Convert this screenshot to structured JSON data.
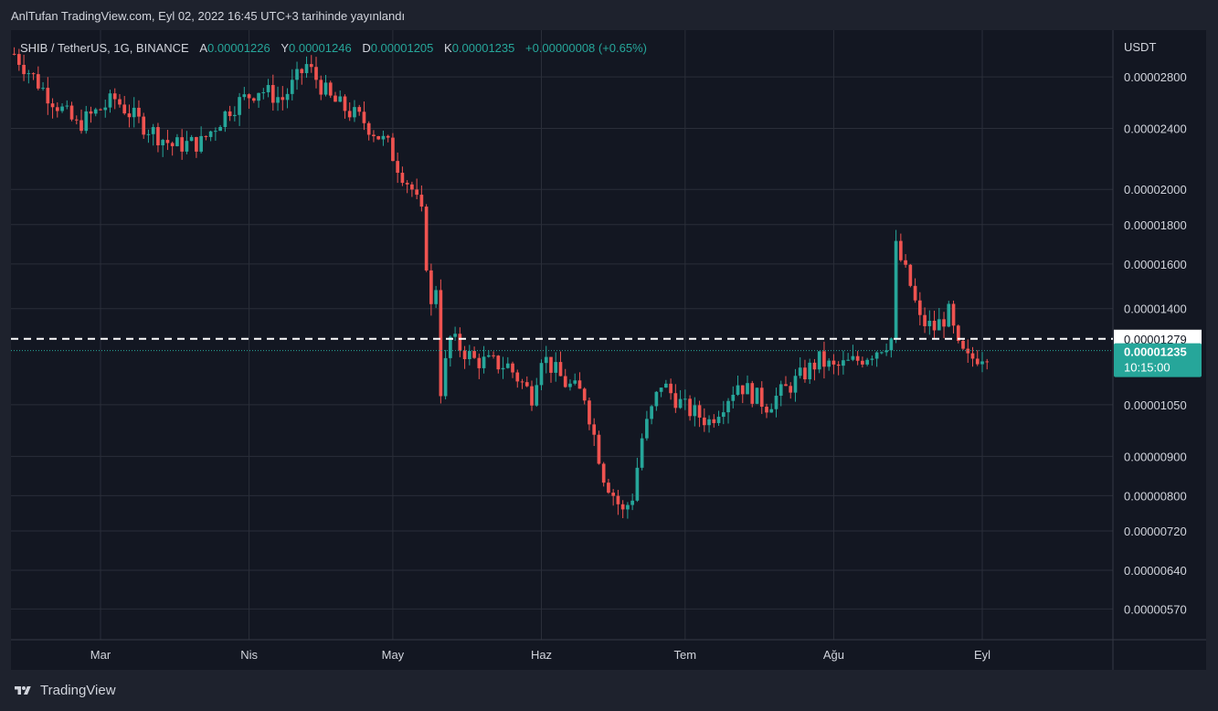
{
  "header": {
    "publish_text": "AnlTufan TradingView.com, Eyl 02, 2022 16:45 UTC+3 tarihinde yayınlandı"
  },
  "legend": {
    "symbol": "SHIB / TetherUS, 1G, BINANCE",
    "open_label": "A",
    "open": "0.00001226",
    "high_label": "Y",
    "high": "0.00001246",
    "low_label": "D",
    "low": "0.00001205",
    "close_label": "K",
    "close": "0.00001235",
    "change": "+0.00000008 (+0.65%)"
  },
  "price_scale": {
    "currency": "USDT",
    "ticks": [
      "0.00002800",
      "0.00002400",
      "0.00002000",
      "0.00001800",
      "0.00001600",
      "0.00001400",
      "0.00001050",
      "0.00000900",
      "0.00000800",
      "0.00000720",
      "0.00000640",
      "0.00000570"
    ],
    "marker_line_label": "0.00001279",
    "current_price_label": "0.00001235",
    "countdown": "10:15:00"
  },
  "footer": {
    "brand": "TradingView"
  },
  "colors": {
    "up": "#26a69a",
    "down": "#ef5350",
    "background": "#131722",
    "grid": "#2a2e39",
    "text": "#d1d4dc"
  },
  "chart_data": {
    "type": "candlestick",
    "title": "SHIB / TetherUS, 1G, BINANCE",
    "ylabel": "USDT",
    "yscale": "log",
    "ylim": [
      5.2e-06,
      3.22e-05
    ],
    "x_tick_labels": [
      {
        "label": "Mar",
        "date": "2022-03-01"
      },
      {
        "label": "Nis",
        "date": "2022-04-01"
      },
      {
        "label": "May",
        "date": "2022-05-01"
      },
      {
        "label": "Haz",
        "date": "2022-06-01"
      },
      {
        "label": "Tem",
        "date": "2022-07-01"
      },
      {
        "label": "Ağu",
        "date": "2022-08-01"
      },
      {
        "label": "Eyl",
        "date": "2022-09-01"
      }
    ],
    "horizontal_line": 1.279e-05,
    "last_close": 1.235e-05,
    "anchors": [
      {
        "date": "2022-02-11",
        "close": 3e-05
      },
      {
        "date": "2022-02-17",
        "close": 2.7e-05
      },
      {
        "date": "2022-02-24",
        "close": 2.42e-05
      },
      {
        "date": "2022-03-04",
        "close": 2.62e-05
      },
      {
        "date": "2022-03-09",
        "close": 2.45e-05
      },
      {
        "date": "2022-03-16",
        "close": 2.28e-05
      },
      {
        "date": "2022-03-22",
        "close": 2.3e-05
      },
      {
        "date": "2022-03-28",
        "close": 2.55e-05
      },
      {
        "date": "2022-04-03",
        "close": 2.7e-05
      },
      {
        "date": "2022-04-08",
        "close": 2.62e-05
      },
      {
        "date": "2022-04-13",
        "close": 2.9e-05
      },
      {
        "date": "2022-04-18",
        "close": 2.62e-05
      },
      {
        "date": "2022-04-25",
        "close": 2.45e-05
      },
      {
        "date": "2022-04-30",
        "close": 2.28e-05
      },
      {
        "date": "2022-05-02",
        "close": 2.15e-05
      },
      {
        "date": "2022-05-05",
        "close": 2e-05
      },
      {
        "date": "2022-05-07",
        "close": 1.85e-05
      },
      {
        "date": "2022-05-09",
        "close": 1.4e-05
      },
      {
        "date": "2022-05-10",
        "close": 1.5e-05
      },
      {
        "date": "2022-05-11",
        "close": 1.1e-05
      },
      {
        "date": "2022-05-13",
        "close": 1.28e-05
      },
      {
        "date": "2022-05-18",
        "close": 1.2e-05
      },
      {
        "date": "2022-05-25",
        "close": 1.18e-05
      },
      {
        "date": "2022-05-30",
        "close": 1.08e-05
      },
      {
        "date": "2022-06-01",
        "close": 1.22e-05
      },
      {
        "date": "2022-06-06",
        "close": 1.12e-05
      },
      {
        "date": "2022-06-10",
        "close": 1.08e-05
      },
      {
        "date": "2022-06-14",
        "close": 8.5e-06
      },
      {
        "date": "2022-06-18",
        "close": 7.6e-06
      },
      {
        "date": "2022-06-20",
        "close": 8e-06
      },
      {
        "date": "2022-06-22",
        "close": 9.5e-06
      },
      {
        "date": "2022-06-26",
        "close": 1.12e-05
      },
      {
        "date": "2022-07-01",
        "close": 1.04e-05
      },
      {
        "date": "2022-07-06",
        "close": 1e-05
      },
      {
        "date": "2022-07-12",
        "close": 1.12e-05
      },
      {
        "date": "2022-07-18",
        "close": 1.05e-05
      },
      {
        "date": "2022-07-22",
        "close": 1.1e-05
      },
      {
        "date": "2022-07-27",
        "close": 1.17e-05
      },
      {
        "date": "2022-07-29",
        "close": 1.2e-05
      },
      {
        "date": "2022-08-01",
        "close": 1.17e-05
      },
      {
        "date": "2022-08-06",
        "close": 1.2e-05
      },
      {
        "date": "2022-08-10",
        "close": 1.24e-05
      },
      {
        "date": "2022-08-13",
        "close": 1.28e-05
      },
      {
        "date": "2022-08-14",
        "close": 1.68e-05
      },
      {
        "date": "2022-08-17",
        "close": 1.5e-05
      },
      {
        "date": "2022-08-19",
        "close": 1.35e-05
      },
      {
        "date": "2022-08-22",
        "close": 1.32e-05
      },
      {
        "date": "2022-08-25",
        "close": 1.38e-05
      },
      {
        "date": "2022-08-27",
        "close": 1.24e-05
      },
      {
        "date": "2022-08-29",
        "close": 1.2e-05
      },
      {
        "date": "2022-09-02",
        "close": 1.23e-05
      }
    ]
  }
}
